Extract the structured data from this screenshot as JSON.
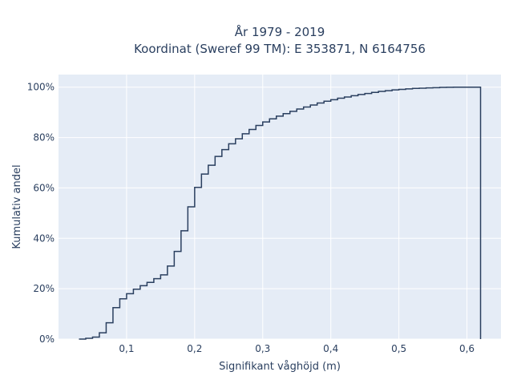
{
  "chart_data": {
    "type": "line",
    "line_shape": "step",
    "title_line1": "År 1979 - 2019",
    "title_line2": "Koordinat (Sweref 99 TM): E 353871, N 6164756",
    "xlabel": "Signifikant våghöjd (m)",
    "ylabel": "Kumulativ andel",
    "xlim": [
      0.0,
      0.65
    ],
    "ylim": [
      0,
      1.05
    ],
    "x_ticks": [
      0.1,
      0.2,
      0.3,
      0.4,
      0.5,
      0.6
    ],
    "x_tick_labels": [
      "0,1",
      "0,2",
      "0,3",
      "0,4",
      "0,5",
      "0,6"
    ],
    "y_ticks": [
      0,
      0.2,
      0.4,
      0.6,
      0.8,
      1.0
    ],
    "y_tick_labels": [
      "0%",
      "20%",
      "40%",
      "60%",
      "80%",
      "100%"
    ],
    "grid": true,
    "plot_background": "#e5ecf6",
    "grid_color": "#ffffff",
    "line_color": "#2a3f5f",
    "series": [
      {
        "x": [
          0.03,
          0.04,
          0.05,
          0.06,
          0.07,
          0.08,
          0.09,
          0.1,
          0.11,
          0.12,
          0.13,
          0.14,
          0.15,
          0.16,
          0.17,
          0.18,
          0.19,
          0.2,
          0.21,
          0.22,
          0.23,
          0.24,
          0.25,
          0.26,
          0.27,
          0.28,
          0.29,
          0.3,
          0.31,
          0.32,
          0.33,
          0.34,
          0.35,
          0.36,
          0.37,
          0.38,
          0.39,
          0.4,
          0.41,
          0.42,
          0.43,
          0.44,
          0.45,
          0.46,
          0.47,
          0.48,
          0.49,
          0.5,
          0.51,
          0.52,
          0.53,
          0.54,
          0.55,
          0.56,
          0.57,
          0.58,
          0.59,
          0.6,
          0.62
        ],
        "y": [
          0.0,
          0.003,
          0.008,
          0.025,
          0.065,
          0.125,
          0.16,
          0.18,
          0.198,
          0.212,
          0.225,
          0.24,
          0.255,
          0.29,
          0.348,
          0.43,
          0.525,
          0.602,
          0.655,
          0.69,
          0.725,
          0.752,
          0.775,
          0.795,
          0.815,
          0.832,
          0.848,
          0.862,
          0.874,
          0.885,
          0.895,
          0.904,
          0.913,
          0.921,
          0.929,
          0.937,
          0.944,
          0.95,
          0.956,
          0.961,
          0.966,
          0.971,
          0.975,
          0.979,
          0.983,
          0.986,
          0.989,
          0.991,
          0.993,
          0.995,
          0.996,
          0.997,
          0.998,
          0.999,
          0.9995,
          0.9998,
          1.0,
          1.0,
          1.0
        ]
      }
    ]
  }
}
